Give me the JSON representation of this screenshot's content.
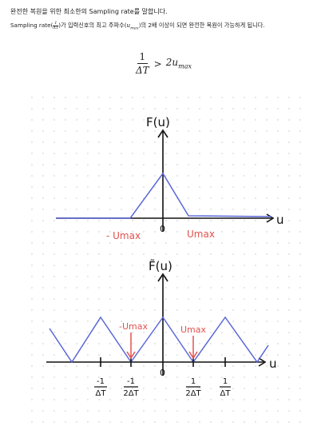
{
  "text": {
    "line1": "완전한 복원을 위한 최소한의 Sampling rate를 말합니다.",
    "line2_a": "Sampling rate(",
    "line2_frac_num": "1",
    "line2_frac_den": "ΔT",
    "line2_b": ")가 입력신호의 최고 주파수(",
    "line2_umax": "u",
    "line2_umax_sub": "max",
    "line2_c": ")의 2배 이상이 되면 완전한 복원이 가능하게 됩니다."
  },
  "formula": {
    "num": "1",
    "den": "ΔT",
    "op": ">",
    "rhs": "2u",
    "rhs_sub": "max"
  },
  "graph1": {
    "ylabel": "F(u)",
    "xlabel": "u",
    "origin": "0",
    "left_label": "- Umax",
    "right_label": "Umax"
  },
  "graph2": {
    "ylabel": "F̃(u)",
    "xlabel": "u",
    "origin": "0",
    "left_label": "-Umax",
    "right_label": "Umax",
    "tick_labels": [
      {
        "num": "-1",
        "den": "ΔT"
      },
      {
        "num": "-1",
        "den": "2ΔT"
      },
      {
        "num": "1",
        "den": "2ΔT"
      },
      {
        "num": "1",
        "den": "ΔT"
      }
    ]
  },
  "colors": {
    "curve": "#5a67d8",
    "annotation": "#e2524f",
    "ink": "#111111",
    "dot": "#d6d6d6"
  }
}
